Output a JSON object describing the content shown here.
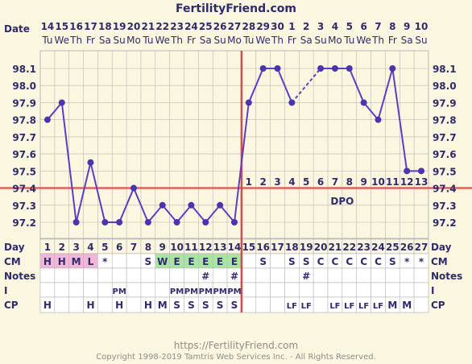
{
  "site_title": "FertilityFriend.com",
  "footer_url": "https://FertilityFriend.com",
  "footer_copyright": "Copyright 1998-2019 Tamtris Web Services Inc. - All Rights Reserved.",
  "row_labels": {
    "date": "Date",
    "day": "Day",
    "cm": "CM",
    "notes": "Notes",
    "i": "I",
    "cp": "CP"
  },
  "chart_data": {
    "type": "line",
    "dates": [
      "14",
      "15",
      "16",
      "17",
      "18",
      "19",
      "20",
      "21",
      "22",
      "23",
      "24",
      "25",
      "26",
      "27",
      "28",
      "29",
      "30",
      "1",
      "2",
      "3",
      "4",
      "5",
      "6",
      "7",
      "8",
      "9",
      "10"
    ],
    "weekdays": [
      "Tu",
      "We",
      "Th",
      "Fr",
      "Sa",
      "Su",
      "Mo",
      "Tu",
      "We",
      "Th",
      "Fr",
      "Sa",
      "Su",
      "Mo",
      "Tu",
      "We",
      "Th",
      "Fr",
      "Sa",
      "Su",
      "Mo",
      "Tu",
      "We",
      "Th",
      "Fr",
      "Sa",
      "Su"
    ],
    "days": [
      "1",
      "2",
      "3",
      "4",
      "5",
      "6",
      "7",
      "8",
      "9",
      "10",
      "11",
      "12",
      "13",
      "14",
      "15",
      "16",
      "17",
      "18",
      "19",
      "20",
      "21",
      "22",
      "23",
      "24",
      "25",
      "26",
      "27"
    ],
    "temps": [
      97.8,
      97.9,
      97.2,
      97.55,
      97.2,
      97.2,
      97.4,
      97.2,
      97.3,
      97.2,
      97.3,
      97.2,
      97.3,
      97.2,
      97.9,
      98.1,
      98.1,
      97.9,
      null,
      98.1,
      98.1,
      98.1,
      97.9,
      97.8,
      98.1,
      97.5,
      97.5
    ],
    "dashed_gap": [
      17,
      19
    ],
    "y_ticks": [
      "98.1",
      "98.0",
      "97.9",
      "97.8",
      "97.7",
      "97.6",
      "97.5",
      "97.4",
      "97.3",
      "97.2"
    ],
    "ylim": [
      97.1,
      98.2
    ],
    "coverline": 97.4,
    "ovulation_day": 14,
    "dpo_numbers": [
      "1",
      "2",
      "3",
      "4",
      "5",
      "6",
      "7",
      "8",
      "9",
      "10",
      "11",
      "12",
      "13"
    ],
    "dpo_label": "DPO",
    "cm": [
      "H",
      "H",
      "M",
      "L",
      "*",
      "",
      "",
      "S",
      "W",
      "E",
      "E",
      "E",
      "E",
      "E",
      "",
      "S",
      "",
      "S",
      "S",
      "C",
      "C",
      "C",
      "C",
      "C",
      "S",
      "*",
      "*"
    ],
    "cm_colors": {
      "H": "#f2b6d9",
      "M": "#f2b6d9",
      "L": "#f2b6d9",
      "W": "#a8e6a0",
      "E": "#a8e6a0"
    },
    "notes": [
      "",
      "",
      "",
      "",
      "",
      "",
      "",
      "",
      "",
      "",
      "",
      "#",
      "",
      "#",
      "",
      "",
      "",
      "",
      "#",
      "",
      "",
      "",
      "",
      "",
      "",
      "",
      ""
    ],
    "intercourse": [
      "",
      "",
      "",
      "",
      "",
      "PM",
      "",
      "",
      "",
      "PM",
      "PM",
      "PM",
      "PM",
      "PM",
      "",
      "",
      "",
      "",
      "",
      "",
      "",
      "",
      "",
      "",
      "",
      "",
      ""
    ],
    "cp": [
      "H",
      "",
      "",
      "H",
      "",
      "H",
      "",
      "H",
      "M",
      "S",
      "S",
      "S",
      "S",
      "S",
      "",
      "",
      "",
      "LF",
      "LF",
      "",
      "LF",
      "LF",
      "LF",
      "LF",
      "M",
      "M",
      ""
    ],
    "colors": {
      "line": "#5a3fc4",
      "point": "#4a35b0",
      "coverline": "#e06060",
      "ovulation": "#d64a4a",
      "grid": "#b8b8b8",
      "text": "#2f2b6b"
    }
  }
}
